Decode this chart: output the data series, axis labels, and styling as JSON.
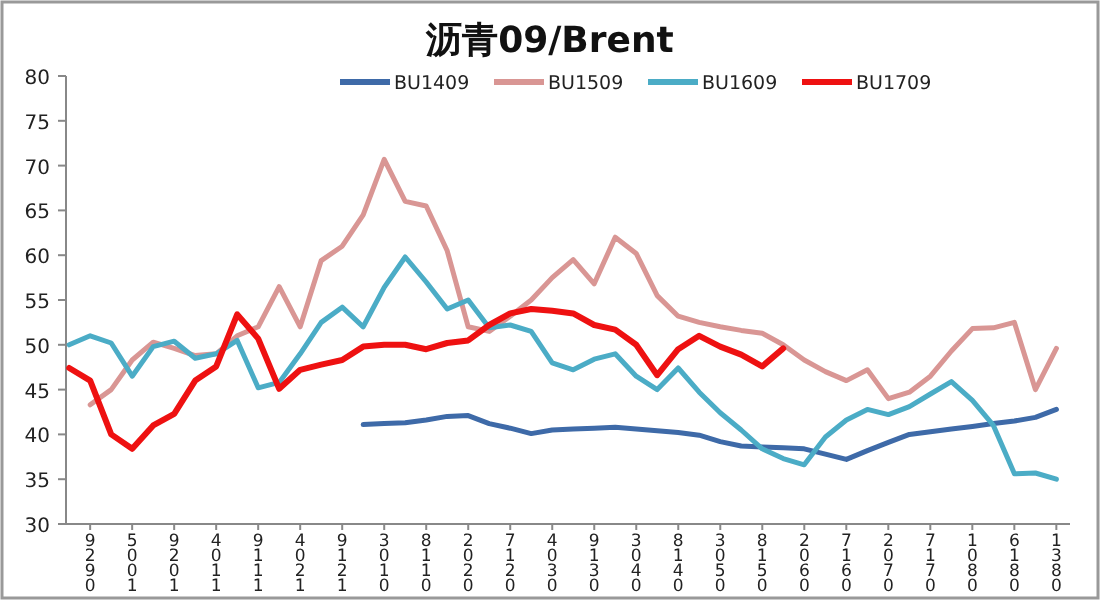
{
  "chart_data": {
    "type": "line",
    "title": "沥青09/Brent",
    "legend": "top",
    "grid": false,
    "line_style": "solid",
    "marker": "none",
    "ylim": [
      30,
      80
    ],
    "yticks": [
      30,
      35,
      40,
      45,
      50,
      55,
      60,
      65,
      70,
      75,
      80
    ],
    "categories": [
      null,
      "9290",
      null,
      "5001",
      null,
      "9201",
      null,
      "4011",
      null,
      "9111",
      null,
      "4021",
      null,
      "9121",
      null,
      "3010",
      null,
      "8110",
      null,
      "2020",
      null,
      "7120",
      null,
      "4030",
      null,
      "9130",
      null,
      "3040",
      null,
      "8140",
      null,
      "3050",
      null,
      "8150",
      null,
      "2060",
      null,
      "7160",
      null,
      "2070",
      null,
      "7170",
      null,
      "1080",
      null,
      "6180",
      null,
      "1380"
    ],
    "series": [
      {
        "name": "BU1409",
        "color": "#3e6aa8",
        "values": [
          null,
          null,
          null,
          null,
          null,
          null,
          null,
          null,
          null,
          null,
          null,
          null,
          null,
          null,
          41.1,
          41.2,
          41.3,
          41.6,
          42,
          42.1,
          41.2,
          40.7,
          40.1,
          40.5,
          40.6,
          40.7,
          40.8,
          40.6,
          40.4,
          40.2,
          39.9,
          39.2,
          38.7,
          38.6,
          38.5,
          38.4,
          37.8,
          37.2,
          38.2,
          39.1,
          40,
          40.3,
          40.6,
          40.9,
          41.2,
          41.5,
          41.9,
          42.8
        ]
      },
      {
        "name": "BU1509",
        "color": "#d99694",
        "values": [
          null,
          43.3,
          45,
          48.3,
          50.3,
          49.6,
          48.8,
          49,
          51,
          52,
          56.5,
          52,
          59.4,
          61,
          64.5,
          70.7,
          66,
          65.5,
          60.5,
          52,
          51.5,
          53.2,
          55,
          57.5,
          59.5,
          56.8,
          62,
          60.2,
          55.5,
          53.2,
          52.5,
          52,
          51.6,
          51.3,
          50,
          48.3,
          47,
          46,
          47.2,
          44,
          44.7,
          46.5,
          49.3,
          51.8,
          51.9,
          52.5,
          45,
          49.6
        ]
      },
      {
        "name": "BU1609",
        "color": "#4bacc6",
        "values": [
          50,
          51,
          50.2,
          46.5,
          49.8,
          50.4,
          48.5,
          49,
          50.5,
          45.2,
          45.8,
          49,
          52.5,
          54.2,
          52,
          56.4,
          59.8,
          57,
          54,
          55,
          51.9,
          52.2,
          51.5,
          48,
          47.2,
          48.4,
          49,
          46.5,
          45,
          47.4,
          44.7,
          42.4,
          40.5,
          38.4,
          37.3,
          36.6,
          39.7,
          41.6,
          42.8,
          42.2,
          43.1,
          44.5,
          45.9,
          43.8,
          41,
          35.6,
          35.7,
          35
        ]
      },
      {
        "name": "BU1709",
        "color": "#ee1111",
        "values": [
          47.4,
          46,
          40,
          38.4,
          41,
          42.3,
          46,
          47.6,
          53.4,
          50.7,
          45.1,
          47.2,
          47.8,
          48.3,
          49.8,
          50,
          50,
          49.5,
          50.2,
          50.5,
          52.2,
          53.5,
          54,
          53.8,
          53.5,
          52.2,
          51.7,
          50,
          46.6,
          49.5,
          51,
          49.8,
          48.9,
          47.6,
          49.6,
          null,
          null,
          null,
          null,
          null,
          null,
          null,
          null,
          null,
          null,
          null,
          null,
          null
        ]
      }
    ]
  }
}
